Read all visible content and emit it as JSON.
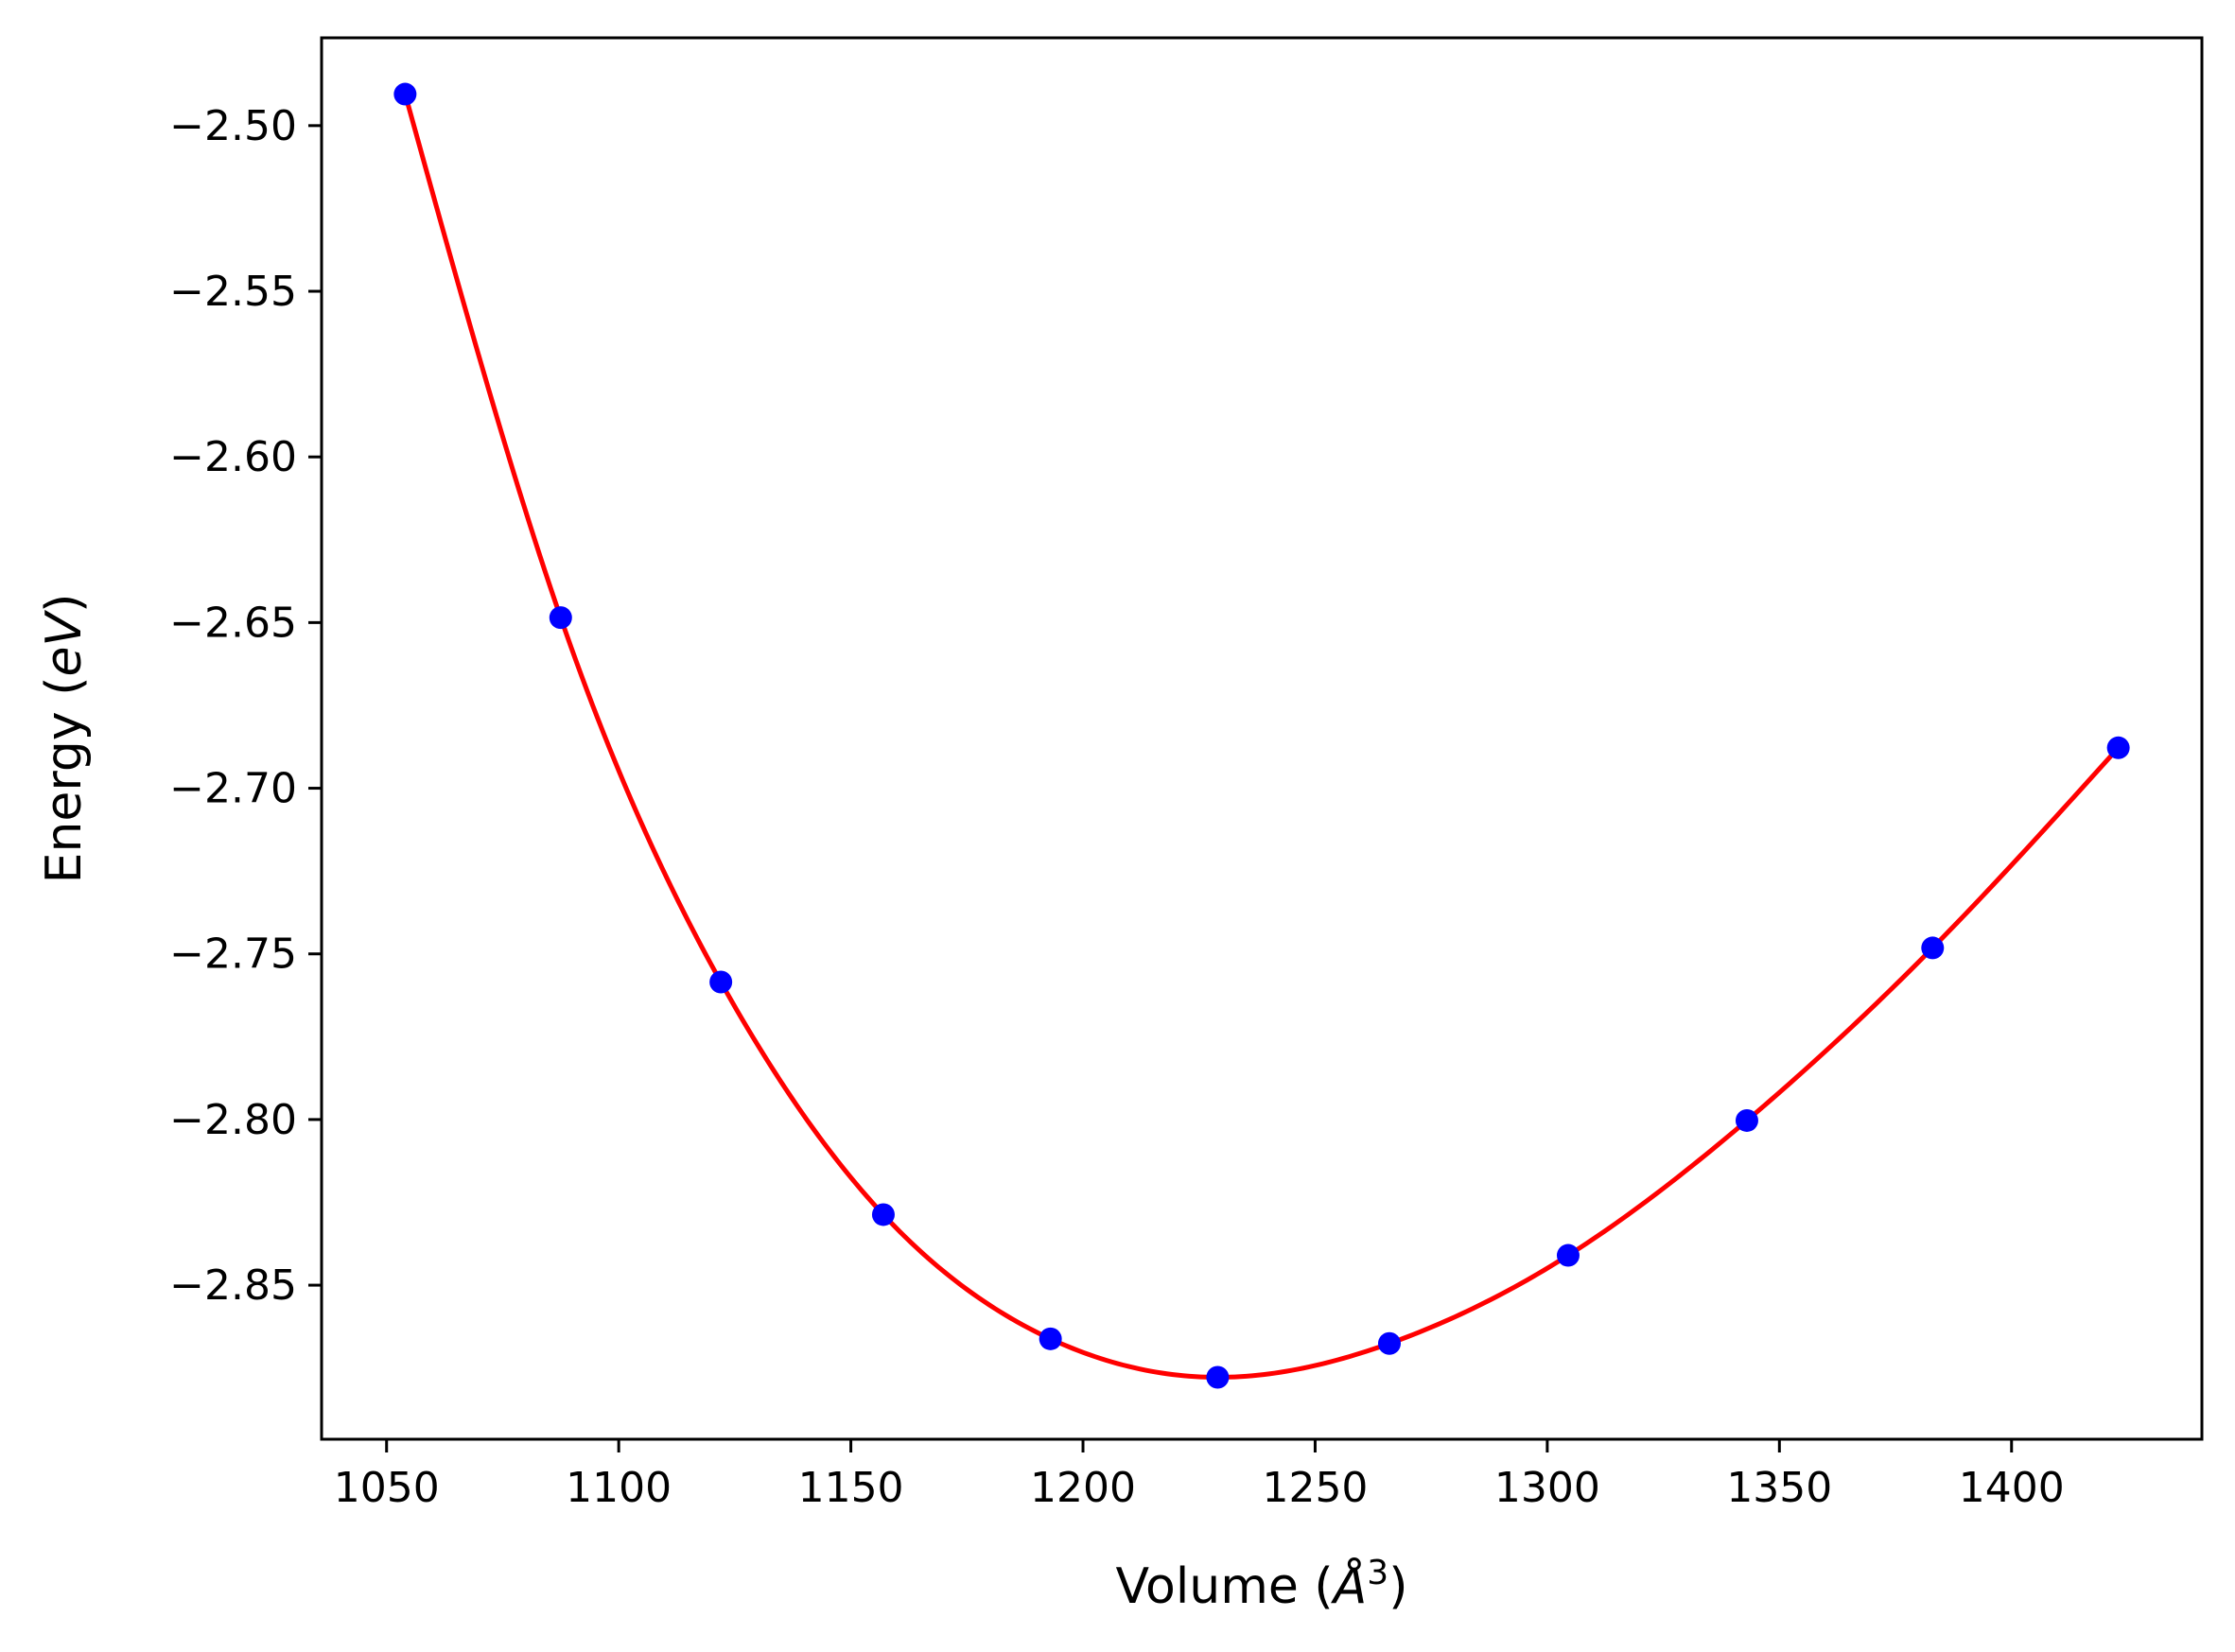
{
  "chart_data": {
    "type": "scatter",
    "xlabel": "Volume (",
    "xlabel_unit": "Å",
    "xlabel_exp": "3",
    "xlabel_close": ")",
    "ylabel": "Energy (",
    "ylabel_unit": "eV",
    "ylabel_close": ")",
    "xlim": [
      1036,
      1441
    ],
    "ylim": [
      -2.8965,
      -2.4735
    ],
    "xticks": [
      1050,
      1100,
      1150,
      1200,
      1250,
      1300,
      1350,
      1400
    ],
    "yticks": [
      -2.5,
      -2.55,
      -2.6,
      -2.65,
      -2.7,
      -2.75,
      -2.8,
      -2.85
    ],
    "xtick_labels": [
      "1050",
      "1100",
      "1150",
      "1200",
      "1250",
      "1300",
      "1350",
      "1400"
    ],
    "ytick_labels": [
      "−2.50",
      "−2.55",
      "−2.60",
      "−2.65",
      "−2.70",
      "−2.75",
      "−2.80",
      "−2.85"
    ],
    "grid": false,
    "series": [
      {
        "kind": "points",
        "color": "#0000ff",
        "x": [
          1054,
          1087.5,
          1122,
          1157,
          1193,
          1229,
          1266,
          1304.5,
          1343,
          1383,
          1423
        ],
        "y": [
          -2.4905,
          -2.6485,
          -2.7585,
          -2.8287,
          -2.8662,
          -2.8778,
          -2.8676,
          -2.841,
          -2.8003,
          -2.7482,
          -2.6878
        ]
      },
      {
        "kind": "fit",
        "color": "#ff0000"
      }
    ]
  }
}
